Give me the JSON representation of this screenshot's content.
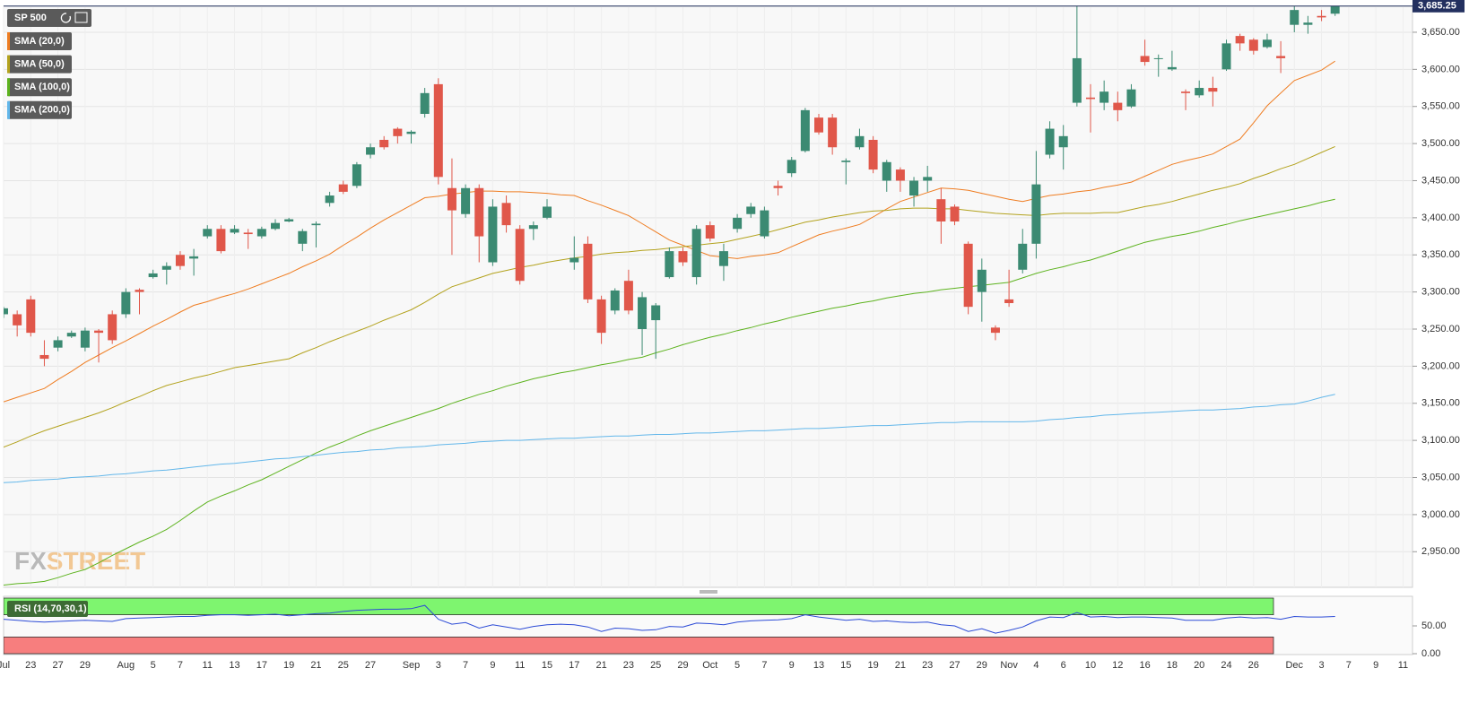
{
  "chart_data": [
    {
      "type": "candlestick",
      "title": "SP 500",
      "categories": [
        "Jul",
        null,
        "23",
        null,
        "27",
        null,
        "29",
        null,
        null,
        "Aug",
        null,
        "5",
        null,
        "7",
        null,
        "11",
        null,
        "13",
        null,
        "17",
        null,
        "19",
        null,
        "21",
        null,
        "25",
        null,
        "27",
        null,
        null,
        "Sep",
        null,
        "3",
        null,
        "7",
        null,
        "9",
        null,
        "11",
        null,
        "15",
        null,
        "17",
        null,
        "21",
        null,
        "23",
        null,
        "25",
        null,
        "29",
        null,
        "Oct",
        null,
        "5",
        null,
        "7",
        null,
        "9",
        null,
        "13",
        null,
        "15",
        null,
        "19",
        null,
        "21",
        null,
        "23",
        null,
        "27",
        null,
        "29",
        null,
        "Nov",
        null,
        "4",
        null,
        "6",
        null,
        "10",
        null,
        "12",
        null,
        "16",
        null,
        "18",
        null,
        "20",
        null,
        "24",
        null,
        "26",
        null,
        null,
        "Dec",
        null,
        "3",
        null,
        "7",
        null,
        "9",
        null,
        "11"
      ],
      "open": [
        3270,
        3270,
        3290,
        3215,
        3225,
        3240,
        3225,
        3248,
        3270,
        3270,
        3303,
        3320,
        3330,
        3350,
        3345,
        3375,
        3385,
        3380,
        3380,
        3375,
        3385,
        3395,
        3365,
        3390,
        3420,
        3445,
        3443,
        3485,
        3505,
        3520,
        3513,
        3540,
        3580,
        3440,
        3405,
        3440,
        3340,
        3420,
        3385,
        3385,
        3400,
        null,
        3340,
        3365,
        3290,
        3275,
        3315,
        3250,
        3262,
        3320,
        3355,
        3320,
        3390,
        3335,
        3385,
        3405,
        3375,
        3443,
        3460,
        3490,
        3535,
        3535,
        3475,
        3495,
        3505,
        3450,
        3465,
        3430,
        3450,
        3425,
        3415,
        3365,
        3300,
        3252,
        3290,
        3330,
        3365,
        3485,
        3495,
        3555,
        3562,
        3555,
        3555,
        3550,
        3618,
        3615,
        3600,
        3570,
        3565,
        3575,
        3600,
        3645,
        3640,
        3630,
        3618,
        3660,
        3660,
        3672,
        3675,
        null,
        null,
        null,
        null,
        null
      ],
      "high": [
        3280,
        3275,
        3295,
        3235,
        3240,
        3248,
        3252,
        3250,
        3275,
        3305,
        3305,
        3330,
        3340,
        3355,
        3358,
        3390,
        3390,
        3390,
        3385,
        3388,
        3398,
        3400,
        3385,
        3395,
        3435,
        3450,
        3475,
        3500,
        3510,
        3522,
        3518,
        3575,
        3588,
        3480,
        3445,
        3445,
        3425,
        3430,
        3390,
        3395,
        3425,
        null,
        3375,
        3375,
        3295,
        3305,
        3330,
        3300,
        3285,
        3360,
        3360,
        3390,
        3395,
        3365,
        3405,
        3420,
        3415,
        3450,
        3482,
        3548,
        3540,
        3540,
        3480,
        3520,
        3510,
        3478,
        3468,
        3455,
        3470,
        3440,
        3418,
        3368,
        3345,
        3255,
        3330,
        3385,
        3490,
        3530,
        3525,
        3685,
        3580,
        3585,
        3570,
        3580,
        3640,
        3620,
        3625,
        3573,
        3585,
        3590,
        3640,
        3648,
        3642,
        3648,
        3638,
        3685,
        3672,
        3680,
        3688,
        null,
        null,
        null,
        null,
        null
      ],
      "low": [
        3265,
        3240,
        3240,
        3200,
        3220,
        3238,
        3220,
        3205,
        3230,
        3265,
        3270,
        3318,
        3310,
        3330,
        3322,
        3372,
        3352,
        3378,
        3358,
        3372,
        3383,
        3394,
        3355,
        3360,
        3415,
        3432,
        3440,
        3480,
        3492,
        3500,
        3500,
        3535,
        3445,
        3350,
        3400,
        3340,
        3335,
        3380,
        3310,
        3370,
        3398,
        null,
        3330,
        3285,
        3230,
        3270,
        3270,
        3215,
        3210,
        3318,
        3335,
        3310,
        3368,
        3315,
        3380,
        3400,
        3372,
        3430,
        3455,
        3488,
        3512,
        3485,
        3445,
        3492,
        3460,
        3435,
        3435,
        3415,
        3435,
        3365,
        3390,
        3270,
        3260,
        3235,
        3280,
        3325,
        3345,
        3480,
        3465,
        3550,
        3515,
        3545,
        3530,
        3548,
        3605,
        3590,
        3598,
        3545,
        3562,
        3550,
        3598,
        3625,
        3620,
        3628,
        3595,
        3650,
        3648,
        3665,
        3672,
        null,
        null,
        null,
        null,
        null
      ],
      "close": [
        3278,
        3255,
        3245,
        3210,
        3235,
        3245,
        3248,
        3245,
        3235,
        3300,
        3300,
        3325,
        3335,
        3335,
        3348,
        3385,
        3355,
        3385,
        3378,
        3385,
        3393,
        3398,
        3382,
        3392,
        3430,
        3435,
        3472,
        3495,
        3495,
        3510,
        3516,
        3568,
        3455,
        3410,
        3440,
        3375,
        3415,
        3390,
        3315,
        3390,
        3415,
        null,
        3346,
        3290,
        3245,
        3302,
        3275,
        3293,
        3282,
        3355,
        3340,
        3385,
        3372,
        3355,
        3400,
        3415,
        3410,
        3440,
        3478,
        3545,
        3515,
        3495,
        3477,
        3510,
        3465,
        3475,
        3450,
        3450,
        3455,
        3395,
        3395,
        3280,
        3330,
        3245,
        3285,
        3365,
        3445,
        3520,
        3510,
        3615,
        3560,
        3570,
        3545,
        3573,
        3610,
        3615,
        3603,
        3568,
        3575,
        3570,
        3635,
        3635,
        3625,
        3640,
        3615,
        3680,
        3663,
        3670,
        3690,
        null,
        null,
        null,
        null,
        null
      ],
      "up_color": "#3b8a72",
      "down_color": "#e0574a",
      "series": [
        {
          "name": "SMA (20,0)",
          "color": "#ef7d22",
          "values": [
            3152,
            3158,
            3164,
            3170,
            3182,
            3193,
            3205,
            3215,
            3225,
            3234,
            3244,
            3254,
            3263,
            3273,
            3282,
            3287,
            3293,
            3298,
            3304,
            3311,
            3318,
            3325,
            3334,
            3342,
            3351,
            3363,
            3374,
            3386,
            3397,
            3407,
            3417,
            3427,
            3429,
            3432,
            3434,
            3436,
            3436,
            3435,
            3435,
            3434,
            3433,
            3431,
            3430,
            3423,
            3417,
            3410,
            3403,
            3392,
            3381,
            3370,
            3363,
            3356,
            3349,
            3347,
            3345,
            3348,
            3350,
            3353,
            3361,
            3369,
            3377,
            3382,
            3386,
            3391,
            3401,
            3412,
            3422,
            3428,
            3434,
            3440,
            3439,
            3437,
            3433,
            3429,
            3425,
            3422,
            3426,
            3430,
            3432,
            3435,
            3437,
            3441,
            3444,
            3448,
            3456,
            3464,
            3472,
            3477,
            3481,
            3486,
            3496,
            3506,
            3528,
            3551,
            3568,
            3585,
            3592,
            3599,
            3611,
            null,
            null,
            null,
            null,
            null
          ]
        },
        {
          "name": "SMA (50,0)",
          "color": "#b3a21d",
          "values": [
            3091,
            3098,
            3106,
            3113,
            3119,
            3125,
            3131,
            3137,
            3144,
            3152,
            3159,
            3167,
            3174,
            3179,
            3184,
            3188,
            3193,
            3198,
            3201,
            3204,
            3207,
            3210,
            3218,
            3225,
            3233,
            3240,
            3247,
            3254,
            3262,
            3269,
            3276,
            3286,
            3297,
            3307,
            3313,
            3319,
            3325,
            3329,
            3333,
            3336,
            3340,
            3343,
            3346,
            3348,
            3351,
            3353,
            3354,
            3356,
            3357,
            3359,
            3361,
            3363,
            3365,
            3367,
            3371,
            3375,
            3379,
            3384,
            3389,
            3394,
            3397,
            3401,
            3404,
            3407,
            3409,
            3410,
            3412,
            3413,
            3413,
            3412,
            3412,
            3410,
            3408,
            3406,
            3405,
            3404,
            3403,
            3405,
            3406,
            3406,
            3406,
            3407,
            3407,
            3411,
            3415,
            3418,
            3422,
            3427,
            3432,
            3437,
            3441,
            3446,
            3453,
            3459,
            3466,
            3472,
            3480,
            3488,
            3496,
            null,
            null,
            null,
            null,
            null
          ]
        },
        {
          "name": "SMA (100,0)",
          "color": "#5db31e",
          "values": [
            2905,
            2907,
            2908,
            2910,
            2915,
            2921,
            2926,
            2935,
            2945,
            2954,
            2963,
            2971,
            2980,
            2992,
            3005,
            3017,
            3025,
            3032,
            3040,
            3047,
            3056,
            3065,
            3074,
            3083,
            3091,
            3098,
            3106,
            3113,
            3119,
            3125,
            3131,
            3137,
            3143,
            3150,
            3156,
            3162,
            3167,
            3173,
            3178,
            3183,
            3187,
            3191,
            3194,
            3198,
            3202,
            3205,
            3209,
            3212,
            3218,
            3223,
            3229,
            3234,
            3239,
            3243,
            3248,
            3252,
            3257,
            3261,
            3266,
            3270,
            3274,
            3278,
            3281,
            3285,
            3288,
            3292,
            3295,
            3298,
            3300,
            3303,
            3305,
            3307,
            3309,
            3311,
            3313,
            3319,
            3325,
            3330,
            3334,
            3339,
            3343,
            3349,
            3355,
            3361,
            3367,
            3371,
            3375,
            3378,
            3382,
            3387,
            3391,
            3396,
            3400,
            3404,
            3408,
            3412,
            3416,
            3421,
            3425,
            null,
            null,
            null,
            null,
            null
          ]
        },
        {
          "name": "SMA (200,0)",
          "color": "#63b7ea",
          "values": [
            3043,
            3044,
            3046,
            3047,
            3048,
            3050,
            3051,
            3052,
            3054,
            3055,
            3057,
            3059,
            3060,
            3062,
            3064,
            3066,
            3068,
            3069,
            3071,
            3073,
            3075,
            3076,
            3078,
            3080,
            3082,
            3084,
            3085,
            3087,
            3088,
            3090,
            3091,
            3092,
            3094,
            3095,
            3096,
            3098,
            3099,
            3100,
            3100,
            3101,
            3102,
            3103,
            3103,
            3104,
            3105,
            3106,
            3106,
            3107,
            3108,
            3108,
            3109,
            3110,
            3110,
            3111,
            3112,
            3113,
            3113,
            3114,
            3115,
            3116,
            3116,
            3117,
            3118,
            3119,
            3120,
            3120,
            3121,
            3122,
            3123,
            3124,
            3124,
            3125,
            3125,
            3125,
            3125,
            3125,
            3126,
            3128,
            3129,
            3131,
            3132,
            3134,
            3135,
            3136,
            3137,
            3138,
            3139,
            3140,
            3141,
            3141,
            3142,
            3143,
            3145,
            3146,
            3148,
            3149,
            3153,
            3158,
            3162,
            null,
            null,
            null,
            null,
            null
          ]
        }
      ],
      "ylim": [
        2902,
        3685
      ],
      "yticks": [
        {
          "value": 2950,
          "label": "2,950.00"
        },
        {
          "value": 3000,
          "label": "3,000.00"
        },
        {
          "value": 3050,
          "label": "3,050.00"
        },
        {
          "value": 3100,
          "label": "3,100.00"
        },
        {
          "value": 3150,
          "label": "3,150.00"
        },
        {
          "value": 3200,
          "label": "3,200.00"
        },
        {
          "value": 3250,
          "label": "3,250.00"
        },
        {
          "value": 3300,
          "label": "3,300.00"
        },
        {
          "value": 3350,
          "label": "3,350.00"
        },
        {
          "value": 3400,
          "label": "3,400.00"
        },
        {
          "value": 3450,
          "label": "3,450.00"
        },
        {
          "value": 3500,
          "label": "3,500.00"
        },
        {
          "value": 3550,
          "label": "3,550.00"
        },
        {
          "value": 3600,
          "label": "3,600.00"
        },
        {
          "value": 3650,
          "label": "3,650.00"
        }
      ],
      "last_price": {
        "value": 3685.25,
        "label": "3,685.25"
      },
      "grid": true
    },
    {
      "type": "line",
      "title": "RSI (14,70,30,1)",
      "color": "#2c4bd6",
      "values": [
        62,
        60,
        58,
        57,
        58,
        59,
        60,
        59,
        58,
        63,
        64,
        65,
        66,
        67,
        67,
        69,
        70,
        70,
        69,
        70,
        71,
        68,
        70,
        72,
        73,
        76,
        78,
        79,
        80,
        80,
        81,
        87,
        62,
        53,
        56,
        46,
        52,
        48,
        44,
        49,
        52,
        53,
        52,
        48,
        40,
        46,
        45,
        42,
        43,
        49,
        48,
        55,
        54,
        52,
        57,
        59,
        60,
        61,
        63,
        70,
        66,
        63,
        60,
        62,
        58,
        59,
        57,
        56,
        57,
        52,
        50,
        40,
        45,
        37,
        42,
        48,
        59,
        66,
        65,
        74,
        66,
        67,
        65,
        66,
        66,
        65,
        64,
        60,
        60,
        60,
        64,
        66,
        64,
        65,
        62,
        67,
        66,
        66,
        67,
        null,
        null,
        null,
        null,
        null
      ],
      "bands": [
        {
          "from": 70,
          "to": 100,
          "color": "#7ef56f"
        },
        {
          "from": 0,
          "to": 30,
          "color": "#f77e7e"
        }
      ],
      "ylim": [
        0,
        100
      ],
      "yticks": [
        {
          "value": 0,
          "label": "0.00"
        },
        {
          "value": 50,
          "label": "50.00"
        }
      ]
    }
  ],
  "watermark": {
    "fx": "FX",
    "street": "STREET"
  }
}
